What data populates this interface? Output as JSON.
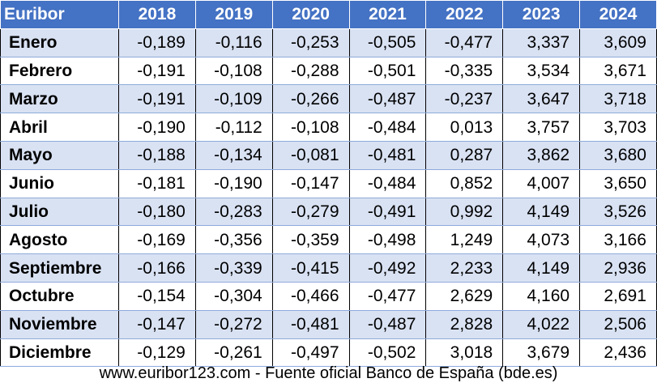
{
  "table": {
    "corner_label": "Euribor",
    "years": [
      "2018",
      "2019",
      "2020",
      "2021",
      "2022",
      "2023",
      "2024"
    ],
    "rows": [
      {
        "month": "Enero",
        "values": [
          "-0,189",
          "-0,116",
          "-0,253",
          "-0,505",
          "-0,477",
          "3,337",
          "3,609"
        ]
      },
      {
        "month": "Febrero",
        "values": [
          "-0,191",
          "-0,108",
          "-0,288",
          "-0,501",
          "-0,335",
          "3,534",
          "3,671"
        ]
      },
      {
        "month": "Marzo",
        "values": [
          "-0,191",
          "-0,109",
          "-0,266",
          "-0,487",
          "-0,237",
          "3,647",
          "3,718"
        ]
      },
      {
        "month": "Abril",
        "values": [
          "-0,190",
          "-0,112",
          "-0,108",
          "-0,484",
          "0,013",
          "3,757",
          "3,703"
        ]
      },
      {
        "month": "Mayo",
        "values": [
          "-0,188",
          "-0,134",
          "-0,081",
          "-0,481",
          "0,287",
          "3,862",
          "3,680"
        ]
      },
      {
        "month": "Junio",
        "values": [
          "-0,181",
          "-0,190",
          "-0,147",
          "-0,484",
          "0,852",
          "4,007",
          "3,650"
        ]
      },
      {
        "month": "Julio",
        "values": [
          "-0,180",
          "-0,283",
          "-0,279",
          "-0,491",
          "0,992",
          "4,149",
          "3,526"
        ]
      },
      {
        "month": "Agosto",
        "values": [
          "-0,169",
          "-0,356",
          "-0,359",
          "-0,498",
          "1,249",
          "4,073",
          "3,166"
        ]
      },
      {
        "month": "Septiembre",
        "values": [
          "-0,166",
          "-0,339",
          "-0,415",
          "-0,492",
          "2,233",
          "4,149",
          "2,936"
        ]
      },
      {
        "month": "Octubre",
        "values": [
          "-0,154",
          "-0,304",
          "-0,466",
          "-0,477",
          "2,629",
          "4,160",
          "2,691"
        ]
      },
      {
        "month": "Noviembre",
        "values": [
          "-0,147",
          "-0,272",
          "-0,481",
          "-0,487",
          "2,828",
          "4,022",
          "2,506"
        ]
      },
      {
        "month": "Diciembre",
        "values": [
          "-0,129",
          "-0,261",
          "-0,497",
          "-0,502",
          "3,018",
          "3,679",
          "2,436"
        ]
      }
    ]
  },
  "footer": {
    "text": "www.euribor123.com - Fuente oficial Banco de España (bde.es)"
  },
  "colors": {
    "header_bg": "#4472c4",
    "header_text": "#ffffff",
    "band_row": "#d9e2f3",
    "plain_row": "#ffffff",
    "grid_line": "#8eaadb"
  }
}
